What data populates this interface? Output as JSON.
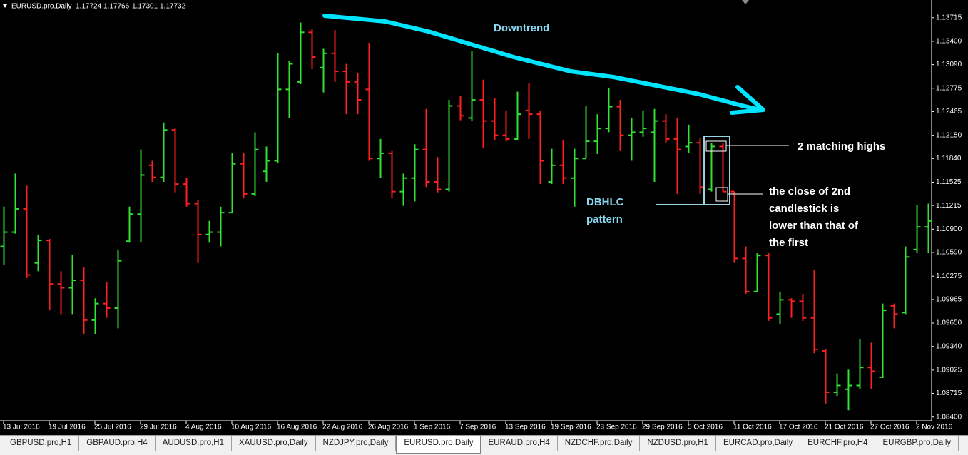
{
  "chart_data": {
    "type": "ohlc",
    "header": {
      "symbol": "EURUSD.pro,Daily",
      "values": [
        1.17724,
        1.17766,
        1.17301,
        1.17732
      ]
    },
    "categories": [
      "13 Jul 2016",
      null,
      null,
      null,
      "19 Jul 2016",
      null,
      null,
      null,
      "25 Jul 2016",
      null,
      null,
      null,
      "29 Jul 2016",
      null,
      null,
      null,
      "4 Aug 2016",
      null,
      null,
      null,
      "10 Aug 2016",
      null,
      null,
      null,
      "16 Aug 2016",
      null,
      null,
      null,
      "22 Aug 2016",
      null,
      null,
      null,
      "26 Aug 2016",
      null,
      null,
      null,
      "1 Sep 2016",
      null,
      null,
      null,
      "7 Sep 2016",
      null,
      null,
      null,
      "13 Sep 2016",
      null,
      null,
      null,
      "19 Sep 2016",
      null,
      null,
      null,
      "23 Sep 2016",
      null,
      null,
      null,
      "29 Sep 2016",
      null,
      null,
      null,
      "5 Oct 2016",
      null,
      null,
      null,
      "11 Oct 2016",
      null,
      null,
      null,
      "17 Oct 2016",
      null,
      null,
      null,
      "21 Oct 2016",
      null,
      null,
      null,
      "27 Oct 2016",
      null,
      null,
      null,
      "2 Nov 2016",
      null
    ],
    "open": [
      1.1067,
      1.1086,
      1.1117,
      1.1045,
      1.1075,
      1.1017,
      1.1012,
      1.1022,
      1.0969,
      1.0991,
      1.0985,
      1.1074,
      1.111,
      1.1175,
      1.1159,
      1.1222,
      1.115,
      1.1124,
      1.1083,
      1.1086,
      1.1112,
      1.1177,
      1.1137,
      1.1167,
      1.1181,
      1.1276,
      1.1286,
      1.1352,
      1.1305,
      1.1324,
      1.13,
      1.1286,
      1.1276,
      1.1184,
      1.1191,
      1.114,
      1.1158,
      1.1196,
      1.1153,
      1.1143,
      1.1254,
      1.1238,
      1.1262,
      1.1234,
      1.1215,
      1.121,
      1.1248,
      1.1243,
      1.1153,
      1.1175,
      1.1158,
      1.1184,
      1.1207,
      1.1224,
      1.1253,
      1.1215,
      1.1219,
      1.1219,
      1.1234,
      1.121,
      1.12,
      1.1205,
      1.1143,
      1.12,
      1.114,
      1.1051,
      1.1007,
      1.1055,
      1.0977,
      1.0996,
      1.0994,
      1.0972,
      1.0928,
      1.0873,
      1.0877,
      1.0882,
      1.0906,
      1.0893,
      1.0988,
      1.0979,
      1.1063,
      1.1093
    ],
    "high": [
      1.112,
      1.1164,
      1.1148,
      1.1082,
      1.1077,
      1.1034,
      1.1056,
      1.1039,
      1.0998,
      1.102,
      1.1063,
      1.112,
      1.1196,
      1.1181,
      1.1232,
      1.1224,
      1.1158,
      1.1129,
      1.1101,
      1.112,
      1.1191,
      1.1191,
      1.1219,
      1.12,
      1.1324,
      1.1314,
      1.1365,
      1.1357,
      1.133,
      1.1355,
      1.131,
      1.1298,
      1.1338,
      1.121,
      1.1194,
      1.1164,
      1.1203,
      1.125,
      1.1186,
      1.1262,
      1.1267,
      1.1327,
      1.1289,
      1.1264,
      1.1248,
      1.1273,
      1.1284,
      1.1248,
      1.1197,
      1.1209,
      1.1197,
      1.1254,
      1.1243,
      1.1278,
      1.1262,
      1.1238,
      1.1248,
      1.125,
      1.1243,
      1.1238,
      1.1229,
      1.1212,
      1.1205,
      1.1205,
      1.114,
      1.1067,
      1.1058,
      1.1058,
      1.1007,
      1.0998,
      1.1004,
      1.1036,
      1.093,
      1.0898,
      1.0903,
      1.0944,
      1.0939,
      1.0991,
      1.0991,
      1.1067,
      1.1122,
      1.1124
    ],
    "low": [
      1.1042,
      1.1084,
      1.1025,
      1.1034,
      1.0982,
      1.0977,
      1.0977,
      1.095,
      1.095,
      1.0972,
      1.0958,
      1.1072,
      1.1072,
      1.1153,
      1.1153,
      1.1139,
      1.112,
      1.1045,
      1.1072,
      1.1067,
      1.1112,
      1.1131,
      1.1134,
      1.1153,
      1.1178,
      1.1238,
      1.1283,
      1.1303,
      1.1272,
      1.1286,
      1.1243,
      1.1243,
      1.1181,
      1.1158,
      1.1131,
      1.1121,
      1.1127,
      1.1146,
      1.1139,
      1.114,
      1.1235,
      1.1234,
      1.1198,
      1.1208,
      1.1207,
      1.1208,
      1.121,
      1.115,
      1.115,
      1.115,
      1.112,
      1.1184,
      1.119,
      1.1219,
      1.1194,
      1.1181,
      1.1213,
      1.1153,
      1.1205,
      1.1137,
      1.1191,
      1.1137,
      1.114,
      1.114,
      1.1045,
      1.1004,
      1.1006,
      1.0968,
      1.0963,
      1.0972,
      1.0968,
      1.0925,
      1.0858,
      1.0868,
      1.0849,
      1.0877,
      1.0877,
      1.0892,
      1.0958,
      1.0977,
      1.1058,
      1.1058
    ],
    "close": [
      1.1086,
      1.1117,
      1.1029,
      1.1075,
      1.1017,
      1.1012,
      1.1022,
      1.0969,
      1.0991,
      1.0985,
      1.1048,
      1.111,
      1.1162,
      1.1159,
      1.1222,
      1.115,
      1.1124,
      1.1083,
      1.1086,
      1.1112,
      1.1177,
      1.1137,
      1.1196,
      1.1181,
      1.1276,
      1.131,
      1.1352,
      1.1319,
      1.1324,
      1.13,
      1.1286,
      1.1262,
      1.1184,
      1.1191,
      1.114,
      1.1158,
      1.1196,
      1.1153,
      1.1143,
      1.1254,
      1.1241,
      1.1262,
      1.1234,
      1.1215,
      1.121,
      1.1243,
      1.1243,
      1.1181,
      1.1175,
      1.1158,
      1.1184,
      1.1207,
      1.1224,
      1.1253,
      1.1215,
      1.1219,
      1.1224,
      1.1234,
      1.121,
      1.1196,
      1.1205,
      1.1146,
      1.12,
      1.114,
      1.1051,
      1.1007,
      1.1055,
      1.0972,
      1.0996,
      1.0994,
      1.0972,
      1.093,
      1.0873,
      1.0882,
      1.0882,
      1.0906,
      1.0901,
      1.0982,
      1.0977,
      1.1053,
      1.1093,
      1.1101
    ],
    "up_color": "#33e033",
    "down_color": "#ff2020",
    "ylim": [
      1.0835,
      1.1395
    ],
    "yticks": [
      1.13715,
      {
        "value": 1.134,
        "label": "1.13400"
      },
      {
        "value": 1.1309,
        "label": "1.13090"
      },
      1.12775,
      1.12465,
      {
        "value": 1.1215,
        "label": "1.12150"
      },
      {
        "value": 1.1184,
        "label": "1.11840"
      },
      1.11525,
      1.11215,
      {
        "value": 1.109,
        "label": "1.10900"
      },
      {
        "value": 1.1059,
        "label": "1.10590"
      },
      1.10275,
      1.09965,
      {
        "value": 1.0965,
        "label": "1.09650"
      },
      {
        "value": 1.0934,
        "label": "1.09340"
      },
      1.09025,
      1.08715,
      {
        "value": 1.084,
        "label": "1.08400"
      }
    ],
    "annotations": {
      "trend": "Downtrend",
      "highs": "2 matching highs",
      "close_note": [
        "the close of 2nd",
        "candlestick is",
        "lower than that of",
        "the first"
      ],
      "pattern": [
        "DBHLC",
        "pattern"
      ]
    }
  },
  "tabs": {
    "items": [
      "GBPUSD.pro,H1",
      "GBPAUD.pro,H4",
      "AUDUSD.pro,H1",
      "XAUUSD.pro,Daily",
      "NZDJPY.pro,Daily",
      "EURUSD.pro,Daily",
      "EURAUD.pro,H4",
      "NZDCHF.pro,Daily",
      "NZDUSD.pro,H1",
      "EURCAD.pro,Daily",
      "EURCHF.pro,H4",
      "EURGBP.pro,Daily"
    ],
    "active": 5
  }
}
